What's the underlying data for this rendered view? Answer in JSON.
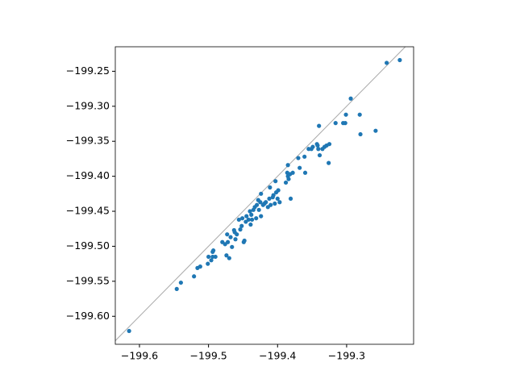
{
  "chart_data": {
    "type": "scatter",
    "color": "#1f77b4",
    "diagonal": true,
    "xlim": [
      -199.635,
      -199.203
    ],
    "ylim": [
      -199.64,
      -199.215
    ],
    "xticks": [
      {
        "value": -199.6,
        "label": "−199.6"
      },
      {
        "value": -199.5,
        "label": "−199.5"
      },
      {
        "value": -199.4,
        "label": "−199.4"
      },
      {
        "value": -199.3,
        "label": "−199.3"
      }
    ],
    "yticks": [
      {
        "value": -199.25,
        "label": "−199.25"
      },
      {
        "value": -199.3,
        "label": "−199.30"
      },
      {
        "value": -199.35,
        "label": "−199.35"
      },
      {
        "value": -199.4,
        "label": "−199.40"
      },
      {
        "value": -199.45,
        "label": "−199.45"
      },
      {
        "value": -199.5,
        "label": "−199.50"
      },
      {
        "value": -199.55,
        "label": "−199.55"
      },
      {
        "value": -199.6,
        "label": "−199.60"
      }
    ],
    "x": [
      -199.615,
      -199.546,
      -199.54,
      -199.521,
      -199.516,
      -199.512,
      -199.501,
      -199.5,
      -199.496,
      -199.494,
      -199.494,
      -199.493,
      -199.49,
      -199.48,
      -199.476,
      -199.474,
      -199.473,
      -199.472,
      -199.47,
      -199.468,
      -199.466,
      -199.463,
      -199.462,
      -199.461,
      -199.459,
      -199.456,
      -199.454,
      -199.452,
      -199.451,
      -199.449,
      -199.448,
      -199.446,
      -199.445,
      -199.442,
      -199.44,
      -199.439,
      -199.438,
      -199.437,
      -199.435,
      -199.433,
      -199.431,
      -199.43,
      -199.428,
      -199.427,
      -199.425,
      -199.424,
      -199.424,
      -199.421,
      -199.419,
      -199.417,
      -199.414,
      -199.412,
      -199.411,
      -199.41,
      -199.407,
      -199.406,
      -199.404,
      -199.403,
      -199.402,
      -199.4,
      -199.399,
      -199.397,
      -199.388,
      -199.386,
      -199.385,
      -199.385,
      -199.384,
      -199.382,
      -199.381,
      -199.378,
      -199.37,
      -199.368,
      -199.361,
      -199.36,
      -199.355,
      -199.351,
      -199.349,
      -199.343,
      -199.342,
      -199.341,
      -199.34,
      -199.339,
      -199.335,
      -199.332,
      -199.329,
      -199.326,
      -199.325,
      -199.316,
      -199.305,
      -199.302,
      -199.301,
      -199.294,
      -199.281,
      -199.28,
      -199.258,
      -199.242,
      -199.223
    ],
    "values": [
      -199.621,
      -199.561,
      -199.552,
      -199.543,
      -199.531,
      -199.529,
      -199.525,
      -199.515,
      -199.52,
      -199.508,
      -199.515,
      -199.506,
      -199.515,
      -199.494,
      -199.497,
      -199.513,
      -199.483,
      -199.494,
      -199.517,
      -199.487,
      -199.501,
      -199.477,
      -199.48,
      -199.49,
      -199.483,
      -199.462,
      -199.476,
      -199.471,
      -199.46,
      -199.494,
      -199.492,
      -199.465,
      -199.457,
      -199.462,
      -199.45,
      -199.469,
      -199.455,
      -199.462,
      -199.448,
      -199.444,
      -199.46,
      -199.441,
      -199.434,
      -199.448,
      -199.437,
      -199.457,
      -199.425,
      -199.441,
      -199.439,
      -199.437,
      -199.444,
      -199.432,
      -199.416,
      -199.441,
      -199.43,
      -199.427,
      -199.439,
      -199.407,
      -199.423,
      -199.432,
      -199.42,
      -199.437,
      -199.409,
      -199.395,
      -199.4,
      -199.384,
      -199.404,
      -199.397,
      -199.432,
      -199.395,
      -199.374,
      -199.388,
      -199.372,
      -199.395,
      -199.361,
      -199.361,
      -199.358,
      -199.354,
      -199.356,
      -199.361,
      -199.328,
      -199.37,
      -199.361,
      -199.358,
      -199.356,
      -199.381,
      -199.354,
      -199.324,
      -199.324,
      -199.324,
      -199.312,
      -199.289,
      -199.312,
      -199.34,
      -199.335,
      -199.238,
      -199.234
    ]
  }
}
